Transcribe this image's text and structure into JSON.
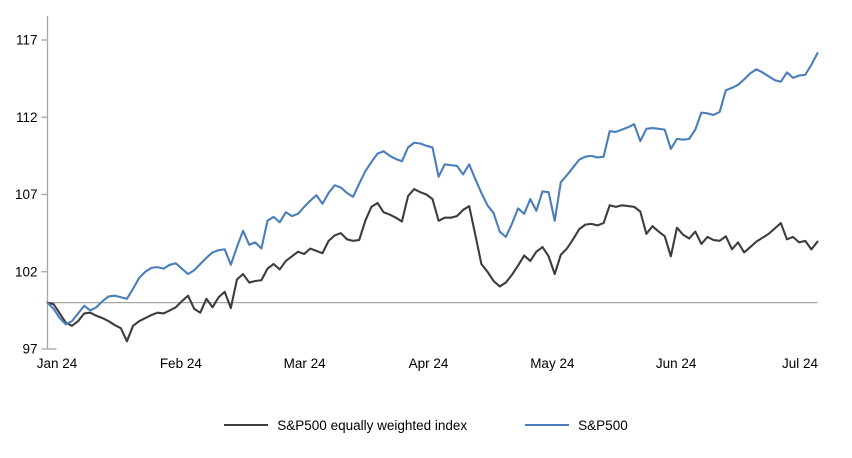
{
  "chart_data": {
    "type": "line",
    "title": "",
    "x_tick_labels": [
      "Jan 24",
      "Feb 24",
      "Mar 24",
      "Apr 24",
      "May 24",
      "Jun 24",
      "Jul 24"
    ],
    "y_tick_labels": [
      117,
      112,
      107,
      102,
      97
    ],
    "y_min": 97,
    "y_max": 117,
    "baseline_value": 100,
    "grid": "baseline-only",
    "axis_color": "#a6a6a6",
    "legend_position": "bottom",
    "series": [
      {
        "name": "S&P500 equally weighted index",
        "color": "#3d3d3d",
        "values": [
          100.0,
          99.9,
          99.3,
          98.7,
          98.5,
          98.8,
          99.3,
          99.35,
          99.15,
          99.0,
          98.8,
          98.55,
          98.35,
          97.5,
          98.5,
          98.8,
          99.0,
          99.2,
          99.35,
          99.3,
          99.5,
          99.7,
          100.1,
          100.45,
          99.6,
          99.35,
          100.25,
          99.7,
          100.35,
          100.7,
          99.65,
          101.5,
          101.85,
          101.3,
          101.4,
          101.45,
          102.2,
          102.5,
          102.15,
          102.7,
          103.0,
          103.3,
          103.15,
          103.5,
          103.35,
          103.2,
          104.0,
          104.35,
          104.5,
          104.1,
          104.0,
          104.05,
          105.3,
          106.2,
          106.45,
          105.85,
          105.7,
          105.5,
          105.25,
          106.9,
          107.35,
          107.15,
          107.0,
          106.7,
          105.3,
          105.5,
          105.5,
          105.6,
          106.0,
          106.25,
          104.4,
          102.5,
          102.0,
          101.4,
          101.05,
          101.3,
          101.8,
          102.4,
          103.05,
          102.7,
          103.3,
          103.6,
          103.0,
          101.85,
          103.1,
          103.5,
          104.1,
          104.75,
          105.05,
          105.1,
          105.0,
          105.15,
          106.3,
          106.2,
          106.3,
          106.25,
          106.2,
          105.9,
          104.45,
          104.95,
          104.6,
          104.3,
          103.0,
          104.85,
          104.4,
          104.15,
          104.6,
          103.8,
          104.25,
          104.05,
          104.0,
          104.3,
          103.45,
          103.9,
          103.25,
          103.6,
          103.95,
          104.2,
          104.45,
          104.8,
          105.15,
          104.1,
          104.25,
          103.9,
          104.0,
          103.45,
          103.95
        ]
      },
      {
        "name": "S&P500",
        "color": "#4a7ebb",
        "values": [
          100.0,
          99.6,
          99.0,
          98.6,
          98.8,
          99.3,
          99.8,
          99.5,
          99.7,
          100.1,
          100.4,
          100.45,
          100.35,
          100.25,
          100.9,
          101.6,
          102.0,
          102.25,
          102.3,
          102.2,
          102.45,
          102.55,
          102.2,
          101.85,
          102.1,
          102.5,
          102.9,
          103.25,
          103.4,
          103.45,
          102.45,
          103.6,
          104.65,
          103.75,
          103.9,
          103.5,
          105.3,
          105.55,
          105.2,
          105.85,
          105.6,
          105.75,
          106.2,
          106.6,
          106.95,
          106.4,
          107.1,
          107.6,
          107.45,
          107.1,
          106.85,
          107.7,
          108.5,
          109.1,
          109.65,
          109.8,
          109.5,
          109.3,
          109.15,
          110.05,
          110.35,
          110.3,
          110.15,
          110.05,
          108.15,
          108.95,
          108.9,
          108.85,
          108.3,
          108.95,
          108.0,
          107.1,
          106.3,
          105.8,
          104.6,
          104.25,
          105.1,
          106.1,
          105.75,
          106.7,
          105.95,
          107.2,
          107.15,
          105.3,
          107.8,
          108.25,
          108.75,
          109.25,
          109.45,
          109.5,
          109.4,
          109.45,
          111.1,
          111.05,
          111.2,
          111.35,
          111.55,
          110.45,
          111.25,
          111.3,
          111.25,
          111.2,
          109.95,
          110.6,
          110.55,
          110.6,
          111.2,
          112.3,
          112.25,
          112.15,
          112.35,
          113.75,
          113.9,
          114.1,
          114.45,
          114.85,
          115.1,
          114.9,
          114.65,
          114.4,
          114.3,
          114.9,
          114.55,
          114.7,
          114.75,
          115.4,
          116.15
        ]
      }
    ]
  }
}
